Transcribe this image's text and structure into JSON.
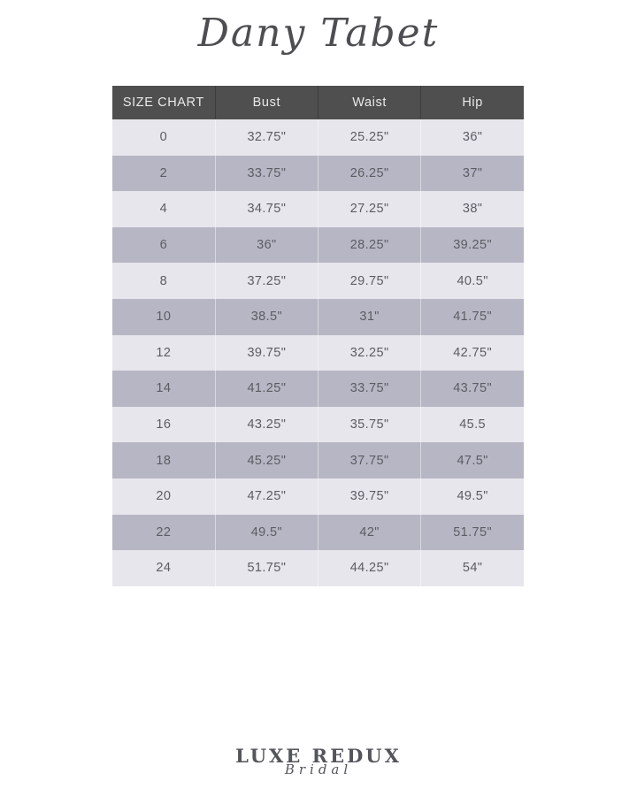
{
  "page": {
    "brand_title": "Dany Tabet"
  },
  "size_chart": {
    "columns": [
      "SIZE CHART",
      "Bust",
      "Waist",
      "Hip"
    ],
    "rows": [
      {
        "size": "0",
        "bust": "32.75\"",
        "waist": "25.25\"",
        "hip": "36\""
      },
      {
        "size": "2",
        "bust": "33.75\"",
        "waist": "26.25\"",
        "hip": "37\""
      },
      {
        "size": "4",
        "bust": "34.75\"",
        "waist": "27.25\"",
        "hip": "38\""
      },
      {
        "size": "6",
        "bust": "36\"",
        "waist": "28.25\"",
        "hip": "39.25\""
      },
      {
        "size": "8",
        "bust": "37.25\"",
        "waist": "29.75\"",
        "hip": "40.5\""
      },
      {
        "size": "10",
        "bust": "38.5\"",
        "waist": "31\"",
        "hip": "41.75\""
      },
      {
        "size": "12",
        "bust": "39.75\"",
        "waist": "32.25\"",
        "hip": "42.75\""
      },
      {
        "size": "14",
        "bust": "41.25\"",
        "waist": "33.75\"",
        "hip": "43.75\""
      },
      {
        "size": "16",
        "bust": "43.25\"",
        "waist": "35.75\"",
        "hip": "45.5"
      },
      {
        "size": "18",
        "bust": "45.25\"",
        "waist": "37.75\"",
        "hip": "47.5\""
      },
      {
        "size": "20",
        "bust": "47.25\"",
        "waist": "39.75\"",
        "hip": "49.5\""
      },
      {
        "size": "22",
        "bust": "49.5\"",
        "waist": "42\"",
        "hip": "51.75\""
      },
      {
        "size": "24",
        "bust": "51.75\"",
        "waist": "44.25\"",
        "hip": "54\""
      }
    ]
  },
  "footer": {
    "logo_primary": "LUXE REDUX",
    "logo_secondary": "Bridal"
  },
  "colors": {
    "header_background": "#4f4f4f",
    "header_text": "#e9e9e9",
    "row_light": "#e7e6ed",
    "row_dark": "#b7b6c4",
    "body_text": "#5c5c64",
    "title_text": "#4e4e52",
    "logo_text": "#54555a",
    "page_background": "#ffffff"
  }
}
